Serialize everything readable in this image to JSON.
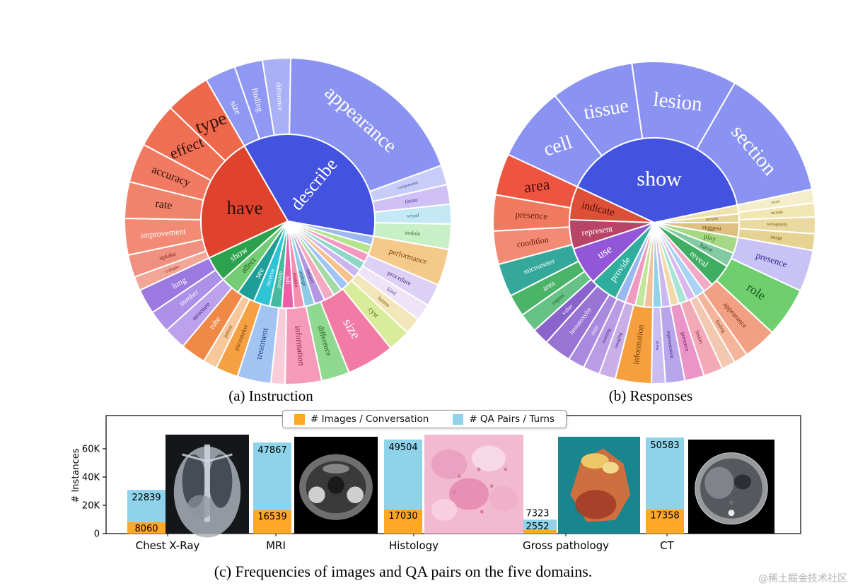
{
  "page": {
    "background": "#ffffff",
    "watermark": "@稀土掘金技术社区"
  },
  "colors": {
    "accent_blue": "#4353e0",
    "accent_red": "#df432e",
    "bar_orange": "#ffa726",
    "bar_blue": "#8fd3ea"
  },
  "chart_data": [
    {
      "type": "sunburst",
      "id": "instruction",
      "title": "(a) Instruction",
      "inner": [
        {
          "l": "describe",
          "s": 330,
          "e": 460,
          "c": "#4353e0",
          "fs": 26,
          "tc": "#ffffff",
          "rot": -50
        },
        {
          "l": "have",
          "s": 245,
          "e": 330,
          "c": "#df432e",
          "fs": 27,
          "tc": "#2d0f08",
          "rot": 0
        },
        {
          "l": "show",
          "s": 228,
          "e": 245,
          "c": "#2ca24d",
          "fs": 13,
          "tc": "#ffffff"
        },
        {
          "l": "affect",
          "s": 215,
          "e": 228,
          "c": "#74cc74",
          "fs": 11,
          "tc": "#1e5c1e"
        },
        {
          "l": "see",
          "s": 203,
          "e": 215,
          "c": "#1f9e98",
          "fs": 12,
          "tc": "#ffffff"
        },
        {
          "l": "receive",
          "s": 192,
          "e": 203,
          "c": "#2ec4d6",
          "fs": 9,
          "tc": "#ffffff"
        },
        {
          "l": "provide",
          "s": 184,
          "e": 192,
          "c": "#46b89e",
          "fs": 8,
          "tc": "#ffffff"
        },
        {
          "l": "tell",
          "s": 176,
          "e": 184,
          "c": "#ee5fa7",
          "fs": 9,
          "tc": "#ffffff"
        },
        {
          "l": "explain",
          "s": 169,
          "e": 176,
          "c": "#f58fb0",
          "fs": 7,
          "tc": "#7a1040"
        },
        {
          "l": "undergo",
          "s": 162,
          "e": 169,
          "c": "#8ecae6",
          "fs": 7,
          "tc": "#174a63"
        },
        {
          "l": "interpret",
          "s": 155,
          "e": 162,
          "c": "#b497e3",
          "fs": 6,
          "tc": "#3d2370"
        },
        {
          "l": "",
          "s": 148,
          "e": 155,
          "c": "#f4a9c0"
        },
        {
          "l": "",
          "s": 142,
          "e": 148,
          "c": "#a3d9a5"
        },
        {
          "l": "",
          "s": 136,
          "e": 142,
          "c": "#9fc5f8"
        },
        {
          "l": "",
          "s": 130,
          "e": 136,
          "c": "#f6c28b"
        },
        {
          "l": "",
          "s": 124,
          "e": 130,
          "c": "#cdb4f0"
        },
        {
          "l": "",
          "s": 118,
          "e": 124,
          "c": "#8fd8c8"
        },
        {
          "l": "",
          "s": 112,
          "e": 118,
          "c": "#f49ac1"
        },
        {
          "l": "",
          "s": 106,
          "e": 112,
          "c": "#b5e48c"
        },
        {
          "l": "",
          "s": 100,
          "e": 106,
          "c": "#9bb8f0"
        }
      ],
      "outer": [
        {
          "l": "size",
          "s": 330,
          "e": 341,
          "c": "#8f98f2",
          "fs": 13,
          "tc": "#ffffff"
        },
        {
          "l": "finding",
          "s": 341,
          "e": 351,
          "c": "#8f98f2",
          "fs": 12,
          "tc": "#ffffff"
        },
        {
          "l": "difference",
          "s": 351,
          "e": 361,
          "c": "#a9b0f5",
          "fs": 10,
          "tc": "#ffffff"
        },
        {
          "l": "appearance",
          "s": 361,
          "e": 430,
          "c": "#8a93f1",
          "fs": 28,
          "tc": "#ffffff",
          "rot": 42
        },
        {
          "l": "compression",
          "s": 430,
          "e": 437,
          "c": "#c7cdf8",
          "fs": 6,
          "tc": "#3a4390"
        },
        {
          "l": "tissue",
          "s": 437,
          "e": 444,
          "c": "#cfc0f6",
          "fs": 8,
          "tc": "#4a3090"
        },
        {
          "l": "vessel",
          "s": 444,
          "e": 451,
          "c": "#c5e8f5",
          "fs": 7,
          "tc": "#1a6080"
        },
        {
          "l": "nodule",
          "s": 451,
          "e": 460,
          "c": "#c9efc6",
          "fs": 8,
          "tc": "#2a6b2a"
        },
        {
          "l": "performance",
          "s": 100,
          "e": 113,
          "c": "#f5c98a",
          "fs": 11,
          "tc": "#7a4a10"
        },
        {
          "l": "procedure",
          "s": 113,
          "e": 121,
          "c": "#dcd0f5",
          "fs": 9,
          "tc": "#4a3585"
        },
        {
          "l": "kind",
          "s": 121,
          "e": 127,
          "c": "#efe3f8",
          "fs": 8,
          "tc": "#6a4a90"
        },
        {
          "l": "lumen",
          "s": 127,
          "e": 133,
          "c": "#f3e6b8",
          "fs": 8,
          "tc": "#7a6010"
        },
        {
          "l": "cyst",
          "s": 133,
          "e": 141,
          "c": "#d9ec9a",
          "fs": 10,
          "tc": "#5a6b10"
        },
        {
          "l": "size",
          "s": 141,
          "e": 158,
          "c": "#f27ba6",
          "fs": 19,
          "tc": "#ffffff"
        },
        {
          "l": "difference",
          "s": 158,
          "e": 168,
          "c": "#8fd88f",
          "fs": 11,
          "tc": "#1d5c1d"
        },
        {
          "l": "information",
          "s": 168,
          "e": 181,
          "c": "#f59ab8",
          "fs": 12,
          "tc": "#8c1c4a"
        },
        {
          "l": "",
          "s": 181,
          "e": 186,
          "c": "#f8cdd9"
        },
        {
          "l": "treatment",
          "s": 186,
          "e": 198,
          "c": "#a2c4f2",
          "fs": 12,
          "tc": "#1c4a8c"
        },
        {
          "l": "pacemaker",
          "s": 198,
          "e": 206,
          "c": "#f5a043",
          "fs": 9,
          "tc": "#7a3c08"
        },
        {
          "l": "patient",
          "s": 206,
          "e": 211,
          "c": "#f8c89a",
          "fs": 7,
          "tc": "#7a4a10"
        },
        {
          "l": "tube",
          "s": 211,
          "e": 220,
          "c": "#f08848",
          "fs": 11,
          "tc": "#ffffff"
        },
        {
          "l": "structure",
          "s": 220,
          "e": 228,
          "c": "#bca2ec",
          "fs": 9,
          "tc": "#3a2080"
        },
        {
          "l": "number",
          "s": 228,
          "e": 236,
          "c": "#ad90e8",
          "fs": 10,
          "tc": "#ffffff"
        },
        {
          "l": "lung",
          "s": 236,
          "e": 245,
          "c": "#9b79e0",
          "fs": 12,
          "tc": "#ffffff"
        },
        {
          "l": "volume",
          "s": 245,
          "e": 250,
          "c": "#f2a698",
          "fs": 7,
          "tc": "#8c2618"
        },
        {
          "l": "uptake",
          "s": 250,
          "e": 258,
          "c": "#f09080",
          "fs": 9,
          "tc": "#8c2618"
        },
        {
          "l": "improvement",
          "s": 258,
          "e": 271,
          "c": "#f28a74",
          "fs": 12,
          "tc": "#ffffff"
        },
        {
          "l": "rate",
          "s": 271,
          "e": 284,
          "c": "#f0836c",
          "fs": 16,
          "tc": "#33120a"
        },
        {
          "l": "accuracy",
          "s": 284,
          "e": 298,
          "c": "#f17a62",
          "fs": 16,
          "tc": "#33120a"
        },
        {
          "l": "effect",
          "s": 298,
          "e": 314,
          "c": "#ef6f55",
          "fs": 22,
          "tc": "#33120a",
          "rot": -22
        },
        {
          "l": "type",
          "s": 314,
          "e": 330,
          "c": "#ee684c",
          "fs": 26,
          "tc": "#33120a",
          "rot": -20
        }
      ]
    },
    {
      "type": "sunburst",
      "id": "responses",
      "title": "(b) Responses",
      "inner": [
        {
          "l": "show",
          "s": 295,
          "e": 438,
          "c": "#4353e0",
          "fs": 30,
          "tc": "#ffffff",
          "rot": 0
        },
        {
          "l": "",
          "s": 438,
          "e": 444,
          "c": "#f0e0b0"
        },
        {
          "l": "include",
          "s": 444,
          "e": 450,
          "c": "#e6d49a",
          "fs": 6,
          "tc": "#6a5510"
        },
        {
          "l": "suggest",
          "s": 450,
          "e": 460,
          "c": "#dec181",
          "fs": 9,
          "tc": "#6a4a08"
        },
        {
          "l": "play",
          "s": 100,
          "e": 111,
          "c": "#a6d986",
          "fs": 10,
          "tc": "#3a6b10"
        },
        {
          "l": "have",
          "s": 111,
          "e": 121,
          "c": "#82cba2",
          "fs": 10,
          "tc": "#1a5c3a"
        },
        {
          "l": "reveal",
          "s": 121,
          "e": 137,
          "c": "#3fae63",
          "fs": 12,
          "tc": "#ffffff"
        },
        {
          "l": "",
          "s": 137,
          "e": 144,
          "c": "#f2a9c5"
        },
        {
          "l": "",
          "s": 144,
          "e": 151,
          "c": "#a9d3f2"
        },
        {
          "l": "",
          "s": 151,
          "e": 157,
          "c": "#d9b8f0"
        },
        {
          "l": "",
          "s": 157,
          "e": 163,
          "c": "#a8e6d4"
        },
        {
          "l": "",
          "s": 163,
          "e": 169,
          "c": "#f2d9a9"
        },
        {
          "l": "",
          "s": 169,
          "e": 175,
          "c": "#c9b8f2"
        },
        {
          "l": "",
          "s": 175,
          "e": 181,
          "c": "#90d2e8"
        },
        {
          "l": "",
          "s": 181,
          "e": 187,
          "c": "#f2c09a"
        },
        {
          "l": "",
          "s": 187,
          "e": 193,
          "c": "#c2e69a"
        },
        {
          "l": "",
          "s": 193,
          "e": 200,
          "c": "#f09ac2"
        },
        {
          "l": "",
          "s": 200,
          "e": 207,
          "c": "#9ab8f0"
        },
        {
          "l": "provide",
          "s": 207,
          "e": 226,
          "c": "#2fae9e",
          "fs": 13,
          "tc": "#ffffff"
        },
        {
          "l": "use",
          "s": 226,
          "e": 252,
          "c": "#9257d8",
          "fs": 16,
          "tc": "#ffffff"
        },
        {
          "l": "represent",
          "s": 252,
          "e": 272,
          "c": "#b84468",
          "fs": 12,
          "tc": "#ffffff"
        },
        {
          "l": "indicate",
          "s": 272,
          "e": 295,
          "c": "#de4f38",
          "fs": 15,
          "tc": "#4a0e05"
        }
      ],
      "outer": [
        {
          "l": "cell",
          "s": 295,
          "e": 322,
          "c": "#8a93f1",
          "fs": 28,
          "tc": "#ffffff",
          "rot": -18
        },
        {
          "l": "tissue",
          "s": 322,
          "e": 352,
          "c": "#8a93f1",
          "fs": 28,
          "tc": "#ffffff",
          "rot": -10
        },
        {
          "l": "lesion",
          "s": 352,
          "e": 390,
          "c": "#8a93f1",
          "fs": 29,
          "tc": "#ffffff",
          "rot": 6
        },
        {
          "l": "section",
          "s": 390,
          "e": 438,
          "c": "#8a93f1",
          "fs": 29,
          "tc": "#ffffff",
          "rot": 50
        },
        {
          "l": "score",
          "s": 438,
          "e": 443,
          "c": "#f5eecb",
          "fs": 6,
          "tc": "#6a5a10"
        },
        {
          "l": "include",
          "s": 443,
          "e": 448,
          "c": "#f2e6b3",
          "fs": 6,
          "tc": "#6a5510"
        },
        {
          "l": "tomography",
          "s": 448,
          "e": 454,
          "c": "#ead9a0",
          "fs": 6,
          "tc": "#6a5510"
        },
        {
          "l": "image",
          "s": 454,
          "e": 460,
          "c": "#e6d391",
          "fs": 7,
          "tc": "#6a5510"
        },
        {
          "l": "presence",
          "s": 100,
          "e": 115,
          "c": "#c9c2f6",
          "fs": 13,
          "tc": "#2a2a8c"
        },
        {
          "l": "role",
          "s": 115,
          "e": 133,
          "c": "#6fcf6f",
          "fs": 18,
          "tc": "#1d5c1d"
        },
        {
          "l": "appearance",
          "s": 133,
          "e": 145,
          "c": "#f2a083",
          "fs": 10,
          "tc": "#7a2c10"
        },
        {
          "l": "finding",
          "s": 145,
          "e": 150,
          "c": "#f4b59a",
          "fs": 7,
          "tc": "#7a2c10"
        },
        {
          "l": "",
          "s": 150,
          "e": 155,
          "c": "#f2c9b0"
        },
        {
          "l": "lesion",
          "s": 155,
          "e": 162,
          "c": "#f2a9b8",
          "fs": 8,
          "tc": "#8c1c3a"
        },
        {
          "l": "presence",
          "s": 162,
          "e": 169,
          "c": "#ea94c8",
          "fs": 8,
          "tc": "#7a1060"
        },
        {
          "l": "representation",
          "s": 169,
          "e": 176,
          "c": "#b8a6ea",
          "fs": 7,
          "tc": "#33208c"
        },
        {
          "l": "view",
          "s": 176,
          "e": 181,
          "c": "#cbbcf2",
          "fs": 7,
          "tc": "#33208c"
        },
        {
          "l": "information",
          "s": 181,
          "e": 194,
          "c": "#f59f3e",
          "fs": 12,
          "tc": "#7a4708"
        },
        {
          "l": "imaging",
          "s": 194,
          "e": 200,
          "c": "#c9aee8",
          "fs": 7,
          "tc": "#42258c"
        },
        {
          "l": "staining",
          "s": 200,
          "e": 206,
          "c": "#ba9ce4",
          "fs": 7,
          "tc": "#42258c"
        },
        {
          "l": "stain",
          "s": 206,
          "e": 212,
          "c": "#aa8ade",
          "fs": 8,
          "tc": "#ffffff"
        },
        {
          "l": "hematoxylin",
          "s": 212,
          "e": 222,
          "c": "#9a74d4",
          "fs": 9,
          "tc": "#ffffff"
        },
        {
          "l": "value",
          "s": 222,
          "e": 228,
          "c": "#8a64cc",
          "fs": 8,
          "tc": "#ffffff"
        },
        {
          "l": "region",
          "s": 228,
          "e": 235,
          "c": "#66c284",
          "fs": 8,
          "tc": "#1a5c34"
        },
        {
          "l": "area",
          "s": 235,
          "e": 243,
          "c": "#4bb469",
          "fs": 11,
          "tc": "#ffffff"
        },
        {
          "l": "micrometer",
          "s": 243,
          "e": 255,
          "c": "#35a89c",
          "fs": 10,
          "tc": "#ffffff"
        },
        {
          "l": "condition",
          "s": 255,
          "e": 267,
          "c": "#f28a74",
          "fs": 12,
          "tc": "#6b1c0c"
        },
        {
          "l": "presence",
          "s": 267,
          "e": 280,
          "c": "#f07a60",
          "fs": 13,
          "tc": "#6b1c0c"
        },
        {
          "l": "area",
          "s": 280,
          "e": 295,
          "c": "#ee5540",
          "fs": 22,
          "tc": "#4a0e06",
          "rot": -8
        }
      ]
    },
    {
      "type": "bar",
      "id": "domains",
      "title": "(c) Frequencies of images and QA pairs on the five domains.",
      "stacked": true,
      "categories": [
        "Chest X-Ray",
        "MRI",
        "Histology",
        "Gross pathology",
        "CT"
      ],
      "series": [
        {
          "name": "# Images / Conversation",
          "color": "#ffa726",
          "values": [
            8060,
            16539,
            17030,
            2552,
            17358
          ]
        },
        {
          "name": "# QA Pairs / Turns",
          "color": "#8fd3ea",
          "values": [
            22839,
            47867,
            49504,
            7323,
            50583
          ]
        }
      ],
      "ylabel": "# Instances",
      "yticks": [
        {
          "v": 0,
          "label": "0"
        },
        {
          "v": 20000,
          "label": "20K"
        },
        {
          "v": 40000,
          "label": "40K"
        },
        {
          "v": 60000,
          "label": "60K"
        }
      ],
      "ymax": 83500,
      "legend_position": "top-center",
      "grid": false,
      "sample_images": [
        "chest-xray-photo",
        "mri-photo",
        "histology-photo",
        "gross-pathology-photo",
        "ct-photo"
      ]
    }
  ]
}
